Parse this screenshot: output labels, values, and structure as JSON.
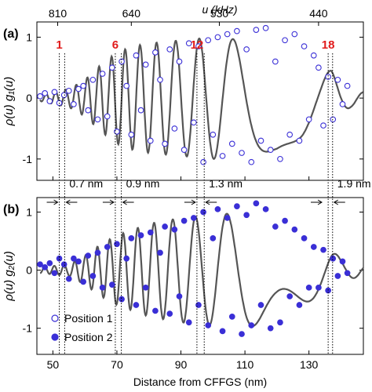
{
  "chart_data": [
    {
      "panel_label": "(a)",
      "type": "line",
      "ylabel": "ρ(u) g₁(u)",
      "ylim": [
        -1.35,
        1.25
      ],
      "yticks": [
        -1,
        0,
        1
      ],
      "xlim": [
        45,
        147
      ],
      "top_axis": {
        "label": "u (kHz)",
        "ticks": [
          810,
          640,
          530,
          440
        ],
        "tick_positions_nm": [
          51.5,
          74.5,
          102,
          133
        ]
      },
      "peak_markers": [
        {
          "label": "1",
          "x": 52
        },
        {
          "label": "6",
          "x": 69.5
        },
        {
          "label": "12",
          "x": 95
        },
        {
          "label": "18",
          "x": 136
        }
      ],
      "fit_curve": {
        "x_start": 46,
        "x_end": 147,
        "envelope": [
          [
            46,
            0.05
          ],
          [
            55,
            0.15
          ],
          [
            60,
            0.3
          ],
          [
            65,
            0.55
          ],
          [
            70,
            0.75
          ],
          [
            75,
            0.85
          ],
          [
            80,
            0.9
          ],
          [
            90,
            0.95
          ],
          [
            100,
            1.0
          ],
          [
            110,
            0.95
          ],
          [
            120,
            0.85
          ],
          [
            128,
            0.65
          ],
          [
            133,
            0.45
          ],
          [
            137,
            0.45
          ],
          [
            140,
            0.25
          ],
          [
            143,
            0.15
          ],
          [
            147,
            0.1
          ]
        ]
      },
      "series": [
        {
          "name": "Position 1",
          "marker": "open-circle",
          "x": [
            46,
            47.5,
            49,
            50.5,
            52,
            53.5,
            55,
            56.5,
            58,
            59.5,
            61,
            62.5,
            64,
            65.5,
            67,
            68.5,
            70,
            71.5,
            73,
            74.5,
            76,
            77.5,
            79,
            80.5,
            82,
            83.5,
            85,
            86.5,
            88,
            89.5,
            91,
            92.5,
            94,
            95.5,
            97,
            98.5,
            100,
            101.5,
            103,
            104.5,
            106,
            107.5,
            109,
            110.5,
            112,
            113.5,
            115,
            116.5,
            118,
            119.5,
            121,
            122.5,
            124,
            125.5,
            127,
            128.5,
            130,
            131.5,
            133,
            134.5,
            136,
            137.5,
            139,
            140.5,
            142
          ],
          "y": [
            0.03,
            0.08,
            -0.05,
            0.1,
            -0.08,
            0.05,
            0.12,
            -0.1,
            0.15,
            0.2,
            -0.2,
            0.3,
            -0.35,
            0.4,
            -0.3,
            0.5,
            -0.55,
            0.6,
            0.2,
            -0.6,
            0.7,
            -0.2,
            0.55,
            -0.7,
            0.75,
            0.3,
            -0.75,
            0.8,
            -0.5,
            0.6,
            -0.85,
            0.9,
            -0.4,
            0.85,
            -1.05,
            0.95,
            -0.6,
            1.0,
            -0.95,
            1.05,
            -0.75,
            1.1,
            -0.9,
            0.8,
            -1.05,
            1.12,
            -0.7,
            1.15,
            -0.85,
            0.6,
            -1.0,
            0.95,
            -0.6,
            1.05,
            -0.7,
            0.85,
            -0.35,
            0.7,
            0.5,
            -0.45,
            0.35,
            -0.35,
            0.3,
            -0.1,
            0.2
          ]
        }
      ]
    },
    {
      "panel_label": "(b)",
      "type": "line",
      "ylabel": "ρ(u) g₂(u)",
      "xlabel": "Distance from CFFGS (nm)",
      "ylim": [
        -1.45,
        1.25
      ],
      "yticks": [
        -1,
        0,
        1
      ],
      "xlim": [
        45,
        147
      ],
      "xticks": [
        50,
        70,
        90,
        110,
        130
      ],
      "fit_curve": {
        "x_start": 46,
        "x_end": 147,
        "envelope": [
          [
            46,
            0.05
          ],
          [
            55,
            0.1
          ],
          [
            60,
            0.25
          ],
          [
            65,
            0.45
          ],
          [
            70,
            0.6
          ],
          [
            75,
            0.7
          ],
          [
            80,
            0.8
          ],
          [
            90,
            0.9
          ],
          [
            100,
            0.95
          ],
          [
            110,
            1.0
          ],
          [
            120,
            0.85
          ],
          [
            128,
            0.6
          ],
          [
            133,
            0.45
          ],
          [
            137,
            0.35
          ],
          [
            140,
            0.2
          ],
          [
            143,
            0.15
          ],
          [
            147,
            0.1
          ]
        ]
      },
      "series": [
        {
          "name": "Position 2",
          "marker": "filled-circle",
          "x": [
            46,
            47.5,
            49,
            50.5,
            52,
            53.5,
            55,
            56.5,
            58,
            59.5,
            61,
            62.5,
            64,
            65.5,
            67,
            68.5,
            70,
            71.5,
            73,
            74.5,
            76,
            77.5,
            79,
            80.5,
            82,
            83.5,
            85,
            86.5,
            88,
            89.5,
            91,
            92.5,
            94,
            95.5,
            97,
            98.5,
            100,
            101.5,
            103,
            104.5,
            106,
            107.5,
            109,
            110.5,
            112,
            113.5,
            115,
            116.5,
            118,
            119.5,
            121,
            122.5,
            124,
            125.5,
            127,
            128.5,
            130,
            131.5,
            133,
            134.5,
            136,
            137.5,
            139,
            140.5,
            142
          ],
          "y": [
            0.1,
            0.05,
            0.12,
            -0.05,
            0.2,
            0.1,
            -0.15,
            0.2,
            0.15,
            -0.2,
            0.25,
            -0.1,
            0.3,
            -0.3,
            0.4,
            -0.25,
            0.45,
            -0.5,
            0.2,
            0.55,
            -0.6,
            0.6,
            -0.3,
            0.65,
            -0.7,
            0.3,
            0.75,
            -0.75,
            0.7,
            -0.45,
            0.85,
            -0.9,
            0.9,
            -0.6,
            1.0,
            -0.95,
            0.55,
            1.05,
            -1.05,
            0.9,
            -0.8,
            1.1,
            -1.1,
            0.95,
            -0.95,
            1.15,
            -0.6,
            1.05,
            -1.0,
            0.75,
            -0.9,
            0.85,
            -0.45,
            0.7,
            -0.6,
            0.55,
            -0.3,
            0.4,
            -0.3,
            0.35,
            -0.35,
            0.2,
            -0.1,
            0.15,
            -0.05
          ]
        }
      ]
    }
  ],
  "spacing_annotations": [
    {
      "label": "0.7 nm",
      "x1": 52,
      "x2": 52.7
    },
    {
      "label": "0.9 nm",
      "x1": 69.5,
      "x2": 70.4
    },
    {
      "label": "1.3 nm",
      "x1": 95,
      "x2": 96.3
    },
    {
      "label": "1.9 nm",
      "x1": 134.5,
      "x2": 136.4
    }
  ],
  "legend": {
    "items": [
      "Position 1",
      "Position 2"
    ],
    "placement": "bottom-left"
  },
  "colors": {
    "marker": "#3a2fd6",
    "fit": "#555555",
    "peak_label": "#e11b1b",
    "axis": "#000000"
  }
}
